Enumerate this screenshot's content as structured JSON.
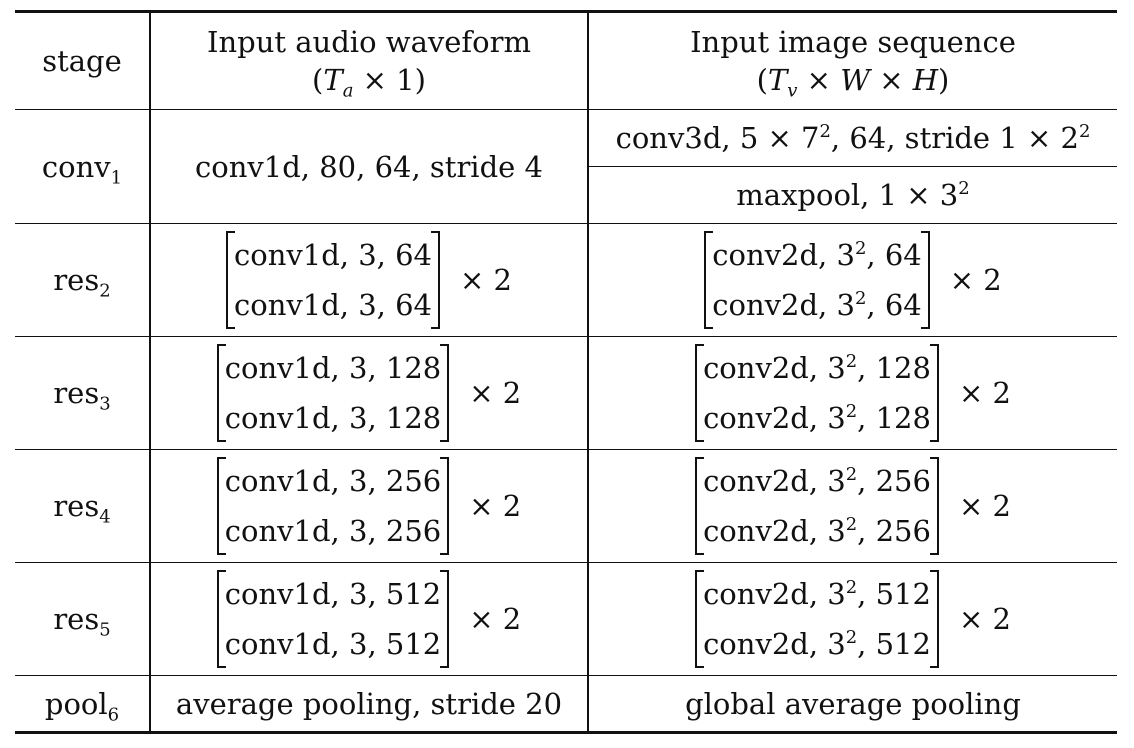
{
  "header": {
    "stage": "stage",
    "audio_title": "Input audio waveform",
    "audio_shape": "(Ta × 1)",
    "image_title": "Input image sequence",
    "image_shape": "(Tv × W × H)"
  },
  "rows": [
    {
      "stage_base": "conv",
      "stage_sub": "1",
      "audio": "conv1d, 80, 64, stride 4",
      "image_a": "conv3d, 5 × 7², 64, stride 1 × 2²",
      "image_b": "maxpool, 1 × 3²"
    },
    {
      "stage_base": "res",
      "stage_sub": "2",
      "audio": [
        "conv1d, 3, 64",
        "conv1d, 3, 64"
      ],
      "image": [
        "conv2d, 3², 64",
        "conv2d, 3², 64"
      ],
      "mult": "× 2"
    },
    {
      "stage_base": "res",
      "stage_sub": "3",
      "audio": [
        "conv1d, 3, 128",
        "conv1d, 3, 128"
      ],
      "image": [
        "conv2d, 3², 128",
        "conv2d, 3², 128"
      ],
      "mult": "× 2"
    },
    {
      "stage_base": "res",
      "stage_sub": "4",
      "audio": [
        "conv1d, 3, 256",
        "conv1d, 3, 256"
      ],
      "image": [
        "conv2d, 3², 256",
        "conv2d, 3², 256"
      ],
      "mult": "× 2"
    },
    {
      "stage_base": "res",
      "stage_sub": "5",
      "audio": [
        "conv1d, 3, 512",
        "conv1d, 3, 512"
      ],
      "image": [
        "conv2d, 3², 512",
        "conv2d, 3², 512"
      ],
      "mult": "× 2"
    },
    {
      "stage_base": "pool",
      "stage_sub": "6",
      "audio": "average pooling, stride 20",
      "image": "global average pooling"
    }
  ]
}
